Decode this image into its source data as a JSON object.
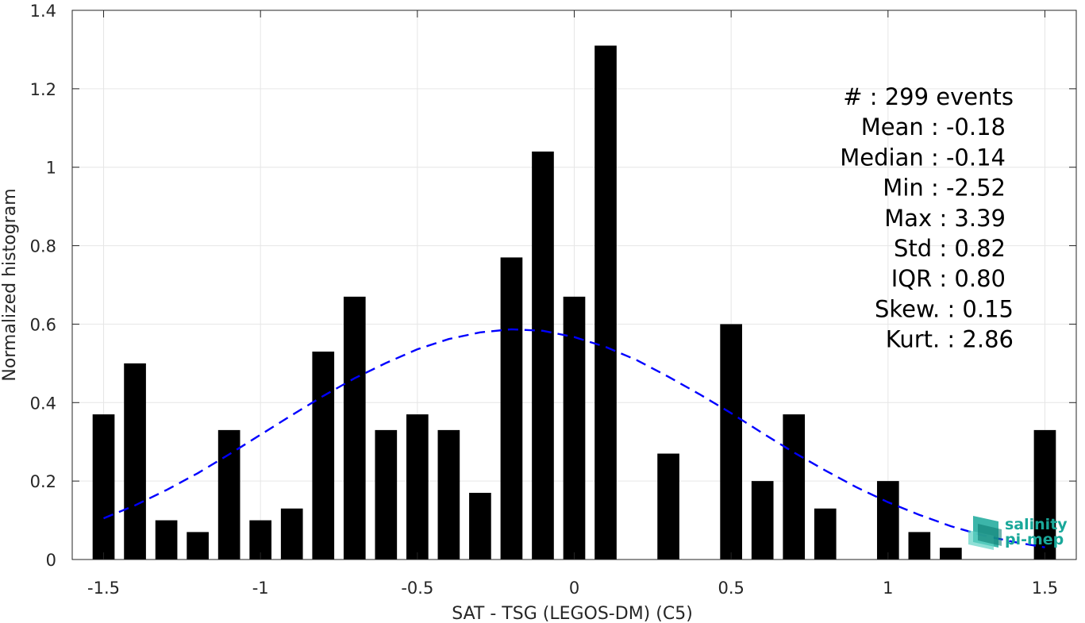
{
  "chart_data": {
    "type": "bar",
    "xlabel": "SAT - TSG (LEGOS-DM) (C5)",
    "ylabel": "Normalized histogram",
    "xlim": [
      -1.5,
      1.5
    ],
    "ylim": [
      0,
      1.4
    ],
    "grid": true,
    "x_ticks": [
      -1.5,
      -1,
      -0.5,
      0,
      0.5,
      1,
      1.5
    ],
    "x_tick_labels": [
      "-1.5",
      "-1",
      "-0.5",
      "0",
      "0.5",
      "1",
      "1.5"
    ],
    "y_ticks": [
      0,
      0.2,
      0.4,
      0.6,
      0.8,
      1,
      1.2,
      1.4
    ],
    "y_tick_labels": [
      "0",
      "0.2",
      "0.4",
      "0.6",
      "0.8",
      "1",
      "1.2",
      "1.4"
    ],
    "bar_width": 0.07,
    "bars": {
      "x": [
        -1.5,
        -1.4,
        -1.3,
        -1.2,
        -1.1,
        -1.0,
        -0.9,
        -0.8,
        -0.7,
        -0.6,
        -0.5,
        -0.4,
        -0.3,
        -0.2,
        -0.1,
        0.0,
        0.1,
        0.2,
        0.3,
        0.4,
        0.5,
        0.6,
        0.7,
        0.8,
        0.9,
        1.0,
        1.1,
        1.2,
        1.3,
        1.5
      ],
      "values": [
        0.37,
        0.5,
        0.1,
        0.07,
        0.33,
        0.1,
        0.13,
        0.53,
        0.67,
        0.33,
        0.37,
        0.33,
        0.17,
        0.77,
        1.04,
        0.67,
        1.31,
        0,
        0.27,
        0,
        0.6,
        0.2,
        0.37,
        0.13,
        0,
        0.2,
        0.07,
        0.03,
        0,
        0.33
      ],
      "color": "#000000"
    },
    "fit_curve": {
      "style": "dashed",
      "color": "#0000ff",
      "x": [
        -1.5,
        -1.4,
        -1.3,
        -1.2,
        -1.1,
        -1.0,
        -0.9,
        -0.8,
        -0.7,
        -0.6,
        -0.5,
        -0.4,
        -0.3,
        -0.2,
        -0.1,
        0.0,
        0.1,
        0.2,
        0.3,
        0.4,
        0.5,
        0.6,
        0.7,
        0.8,
        0.9,
        1.0,
        1.1,
        1.2,
        1.3,
        1.4,
        1.5
      ],
      "y": [
        0.105,
        0.138,
        0.177,
        0.22,
        0.268,
        0.318,
        0.368,
        0.417,
        0.462,
        0.501,
        0.536,
        0.562,
        0.579,
        0.587,
        0.583,
        0.567,
        0.542,
        0.508,
        0.466,
        0.421,
        0.373,
        0.322,
        0.273,
        0.227,
        0.184,
        0.146,
        0.114,
        0.085,
        0.062,
        0.045,
        0.031
      ]
    },
    "stats_text": [
      "#  : 299 events",
      "Mean : -0.18",
      "Median : -0.14",
      "Min : -2.52",
      "Max : 3.39",
      "Std : 0.82",
      "IQR : 0.80",
      "Skew. : 0.15",
      "Kurt. : 2.86"
    ]
  },
  "logo": {
    "line1": "salinity",
    "line2": "pi-mep",
    "color": "#1aa89a"
  }
}
